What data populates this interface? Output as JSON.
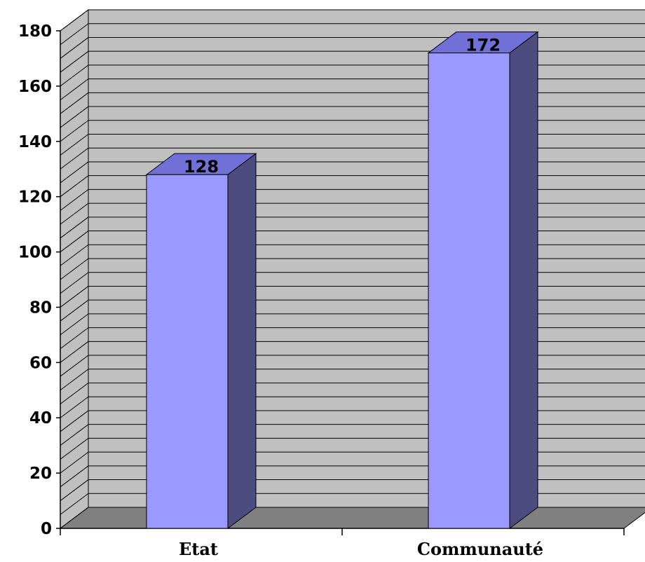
{
  "chart_data": {
    "type": "bar",
    "style": "3d",
    "categories": [
      "Etat",
      "Communauté"
    ],
    "values": [
      128,
      172
    ],
    "data_labels": [
      "128",
      "172"
    ],
    "title": "",
    "xlabel": "",
    "ylabel": "",
    "ylim": [
      0,
      180
    ],
    "y_ticks": [
      "0",
      "20",
      "40",
      "60",
      "80",
      "100",
      "120",
      "140",
      "160",
      "180"
    ],
    "grid": true,
    "legend": "none",
    "colors": {
      "bar_front": "#9999ff",
      "bar_top": "#7070d8",
      "bar_side": "#4c4c80",
      "back_wall": "#c0c0c0",
      "floor": "#808080",
      "grid": "#000000"
    }
  }
}
